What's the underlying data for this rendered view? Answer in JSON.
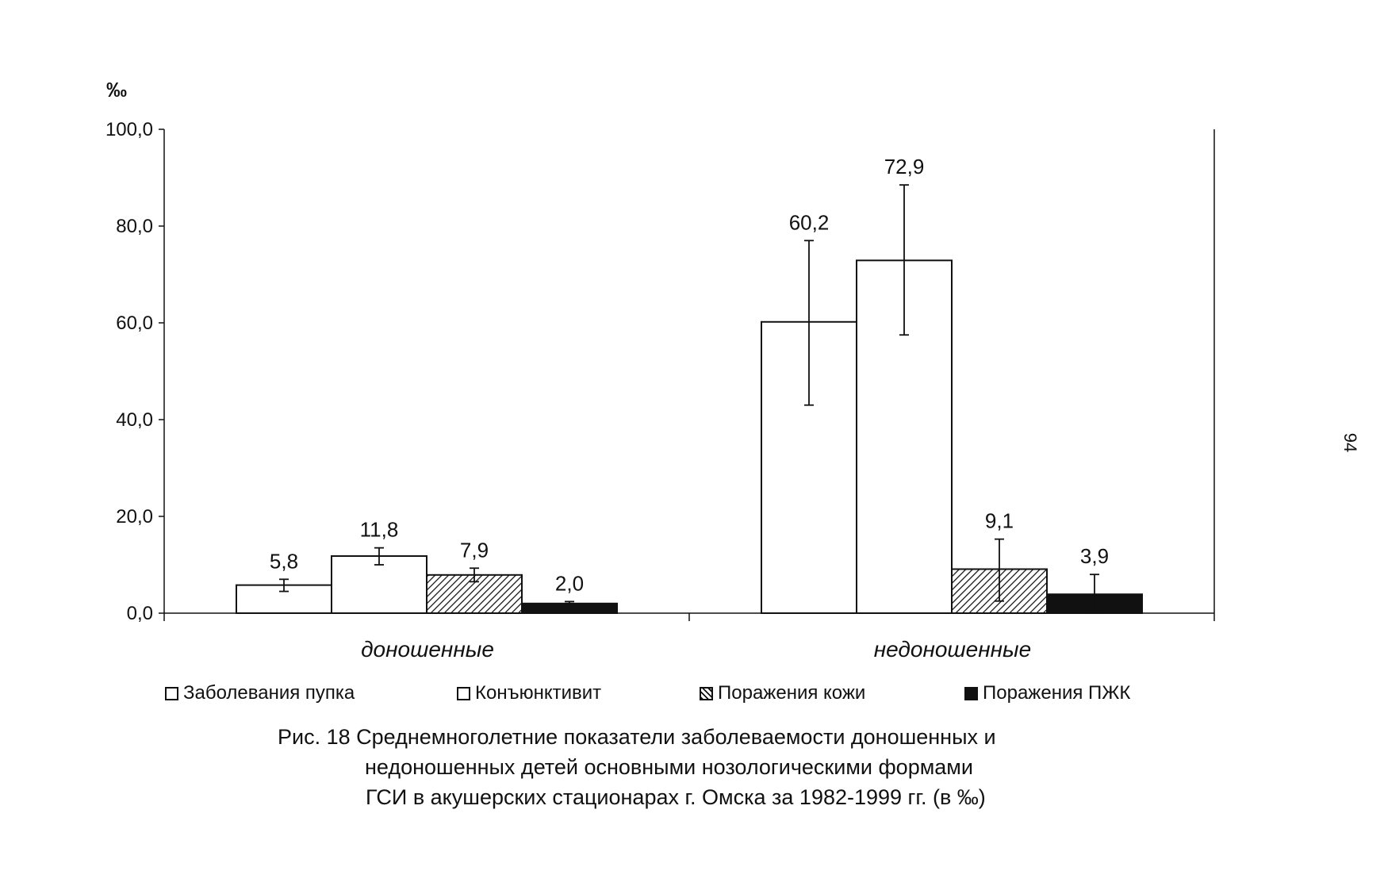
{
  "chart_data": {
    "type": "bar",
    "unit_label": "‰",
    "categories": [
      "доношенные",
      "недоношенные"
    ],
    "series": [
      {
        "name": "Заболевания пупка",
        "values": [
          5.8,
          60.2
        ],
        "error_low": [
          4.5,
          43.0
        ],
        "error_high": [
          7.0,
          77.0
        ],
        "fill": "white"
      },
      {
        "name": "Конъюнктивит",
        "values": [
          11.8,
          72.9
        ],
        "error_low": [
          10.0,
          57.5
        ],
        "error_high": [
          13.5,
          88.5
        ],
        "fill": "white"
      },
      {
        "name": "Поражения кожи",
        "values": [
          7.9,
          9.1
        ],
        "error_low": [
          6.5,
          2.5
        ],
        "error_high": [
          9.3,
          15.3
        ],
        "fill": "hatch"
      },
      {
        "name": "Поражения ПЖК",
        "values": [
          2.0,
          3.9
        ],
        "error_low": [
          1.6,
          0.0
        ],
        "error_high": [
          2.4,
          8.0
        ],
        "fill": "solid"
      }
    ],
    "data_labels": [
      [
        "5,8",
        "60,2"
      ],
      [
        "11,8",
        "72,9"
      ],
      [
        "7,9",
        "9,1"
      ],
      [
        "2,0",
        "3,9"
      ]
    ],
    "y_ticks": [
      "0,0",
      "20,0",
      "40,0",
      "60,0",
      "80,0",
      "100,0"
    ],
    "ylim": [
      0,
      100
    ],
    "grid": false,
    "legend_position": "bottom",
    "colors": {
      "ink": "#111111",
      "background": "#ffffff"
    }
  },
  "caption": {
    "line1": "Рис. 18 Среднемноголетние показатели заболеваемости доношенных и",
    "line2": "недоношенных детей основными нозологическими формами",
    "line3": "ГСИ в акушерских стационарах г. Омска за 1982-1999 гг. (в ‰)"
  },
  "page_number": "94"
}
